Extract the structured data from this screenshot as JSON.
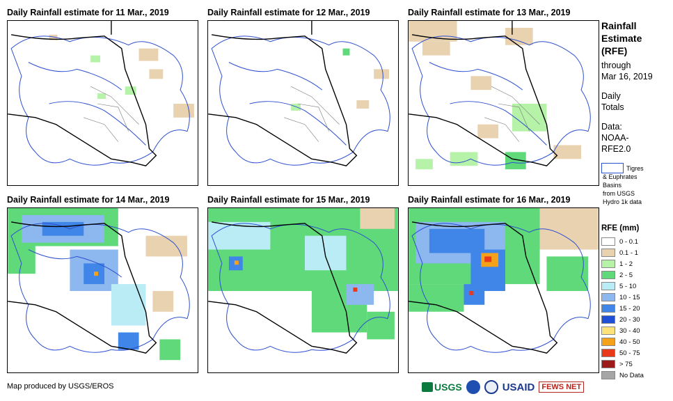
{
  "panels": [
    {
      "title": "Daily Rainfall estimate for 11 Mar., 2019"
    },
    {
      "title": "Daily Rainfall estimate for 12 Mar., 2019"
    },
    {
      "title": "Daily Rainfall estimate for 13 Mar., 2019"
    },
    {
      "title": "Daily Rainfall estimate for 14 Mar., 2019"
    },
    {
      "title": "Daily Rainfall estimate for 15 Mar., 2019"
    },
    {
      "title": "Daily Rainfall estimate for 16 Mar., 2019"
    }
  ],
  "sidebar": {
    "title_lines": [
      "Rainfall",
      "Estimate",
      "(RFE)"
    ],
    "through_lines": [
      "through",
      "Mar 16, 2019"
    ],
    "daily_lines": [
      "Daily",
      "Totals"
    ],
    "data_lines": [
      "Data:",
      "NOAA-",
      "RFE2.0"
    ],
    "basin_lines": [
      "Tigres",
      "& Euphrates",
      "Basins",
      "from USGS",
      "Hydro 1k data"
    ]
  },
  "legend": {
    "title": "RFE (mm)",
    "items": [
      {
        "label": "0 - 0.1",
        "color": "#ffffff"
      },
      {
        "label": "0.1 - 1",
        "color": "#e8d2b0"
      },
      {
        "label": "1 - 2",
        "color": "#b6f2a8"
      },
      {
        "label": "2 - 5",
        "color": "#5fd97a"
      },
      {
        "label": "5 - 10",
        "color": "#b9ecf5"
      },
      {
        "label": "10 - 15",
        "color": "#8cb8ef"
      },
      {
        "label": "15 - 20",
        "color": "#3f86e8"
      },
      {
        "label": "20 - 30",
        "color": "#1f4fd6"
      },
      {
        "label": "30 - 40",
        "color": "#fbe37a"
      },
      {
        "label": "40 - 50",
        "color": "#f5a21b"
      },
      {
        "label": "50 - 75",
        "color": "#e8391b"
      },
      {
        "label": "> 75",
        "color": "#9c1a1a"
      },
      {
        "label": "No Data",
        "color": "#a6a6a6"
      }
    ]
  },
  "credit": "Map produced by USGS/EROS",
  "logos": {
    "usgs": "USGS",
    "usaid": "USAID",
    "fews": "FEWS NET"
  },
  "colors": {
    "basin": "#2d4fd1",
    "border": "#000000",
    "admin": "#7a7a7a"
  }
}
